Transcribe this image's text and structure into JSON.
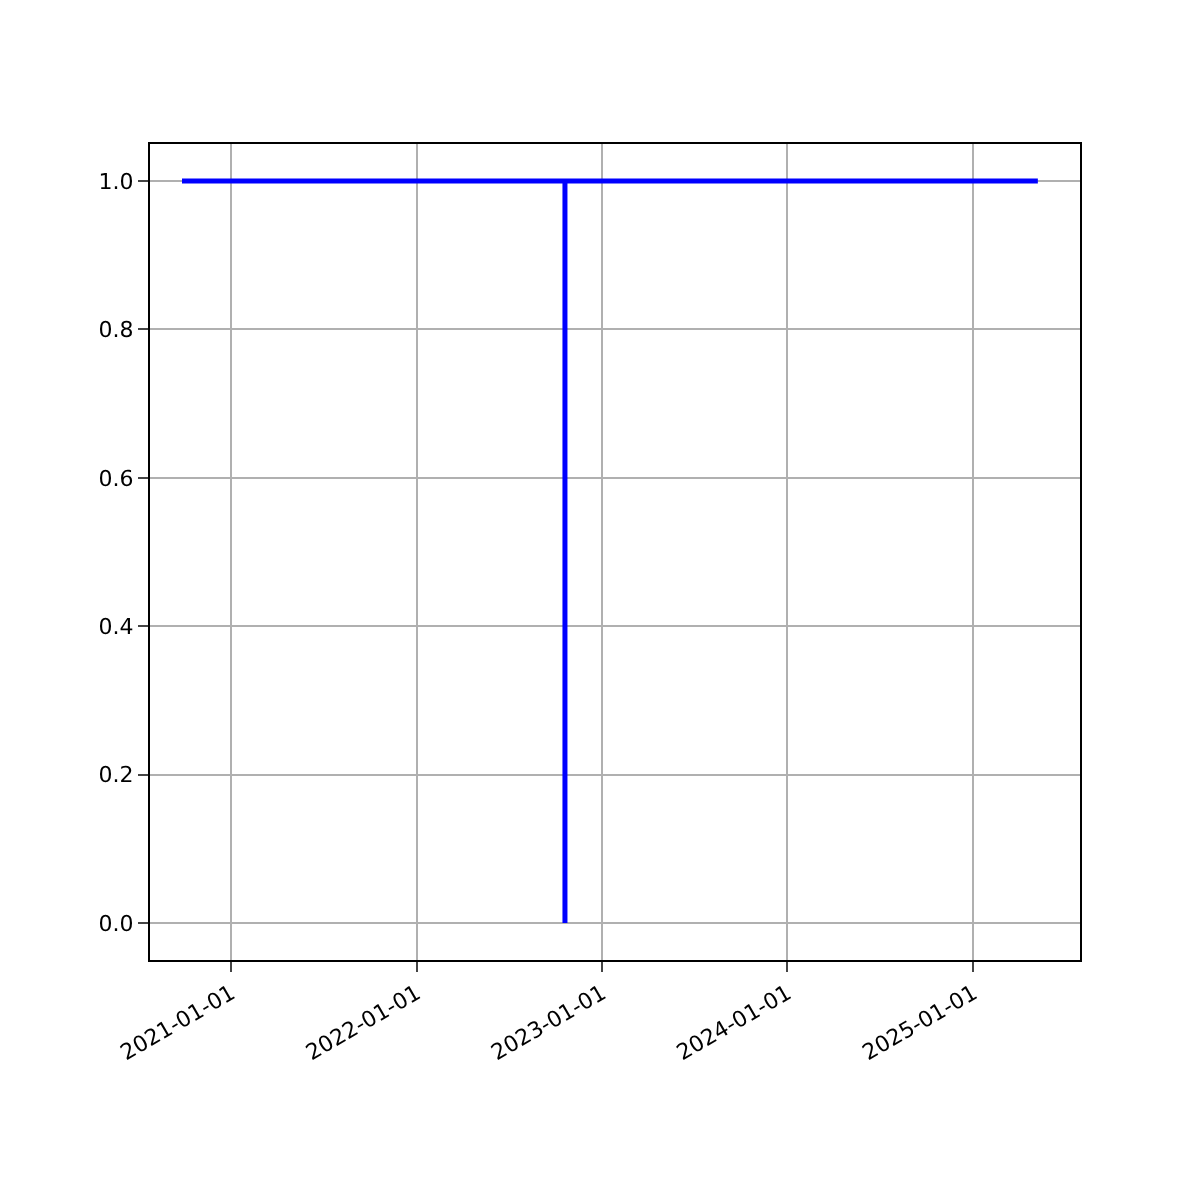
{
  "chart_data": {
    "type": "line",
    "x": [
      "2020-09-26",
      "2022-10-20",
      "2022-10-20",
      "2022-10-20",
      "2025-05-08"
    ],
    "series": [
      {
        "color": "#0000ff",
        "values": [
          1.0,
          1.0,
          0.0,
          1.0,
          1.0
        ]
      }
    ],
    "xlim": [
      "2020-07-25",
      "2025-07-30"
    ],
    "xticks": [
      {
        "value": "2021-01-01",
        "label": "2021-01-01"
      },
      {
        "value": "2022-01-01",
        "label": "2022-01-01"
      },
      {
        "value": "2023-01-01",
        "label": "2023-01-01"
      },
      {
        "value": "2024-01-01",
        "label": "2024-01-01"
      },
      {
        "value": "2025-01-01",
        "label": "2025-01-01"
      }
    ],
    "ylim": [
      -0.05,
      1.05
    ],
    "yticks": [
      {
        "value": 0,
        "label": "0.0"
      },
      {
        "value": 0.2,
        "label": "0.2"
      },
      {
        "value": 0.4,
        "label": "0.4"
      },
      {
        "value": 0.6,
        "label": "0.6"
      },
      {
        "value": 0.8,
        "label": "0.8"
      },
      {
        "value": 1,
        "label": "1.0"
      }
    ],
    "grid": true,
    "legend": false
  }
}
